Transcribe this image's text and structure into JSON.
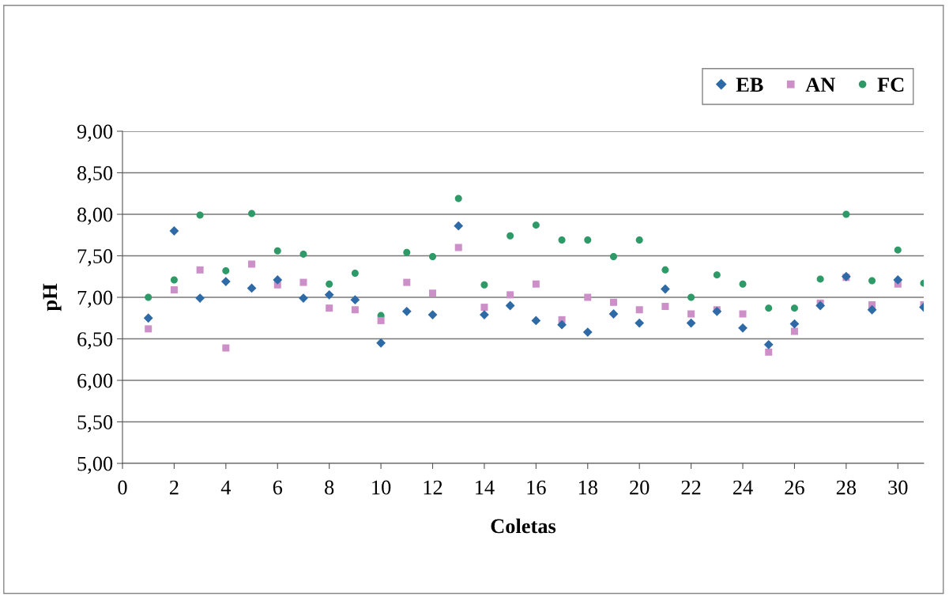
{
  "chart_data": {
    "type": "scatter",
    "xlabel": "Coletas",
    "ylabel": "pH",
    "x": [
      1,
      2,
      3,
      4,
      5,
      6,
      7,
      8,
      9,
      10,
      11,
      12,
      13,
      14,
      15,
      16,
      17,
      18,
      19,
      20,
      21,
      22,
      23,
      24,
      25,
      26,
      27,
      28,
      29,
      30,
      31
    ],
    "series": [
      {
        "name": "EB",
        "color": "#2e6aa6",
        "marker": "diamond",
        "values": [
          6.75,
          7.8,
          6.99,
          7.19,
          7.11,
          7.21,
          6.99,
          7.03,
          6.97,
          6.45,
          6.83,
          6.79,
          7.86,
          6.79,
          6.9,
          6.72,
          6.67,
          6.58,
          6.8,
          6.69,
          7.1,
          6.69,
          6.83,
          6.63,
          6.43,
          6.68,
          6.9,
          7.25,
          6.85,
          7.21,
          6.88
        ]
      },
      {
        "name": "AN",
        "color": "#cc8fc8",
        "marker": "square",
        "values": [
          6.62,
          7.09,
          7.33,
          6.39,
          7.4,
          7.15,
          7.18,
          6.87,
          6.85,
          6.72,
          7.18,
          7.05,
          7.6,
          6.88,
          7.03,
          7.16,
          6.73,
          7.0,
          6.94,
          6.85,
          6.89,
          6.8,
          6.85,
          6.8,
          6.34,
          6.59,
          6.93,
          7.24,
          6.91,
          7.16,
          6.91
        ]
      },
      {
        "name": "FC",
        "color": "#2e9a68",
        "marker": "circle",
        "values": [
          7.0,
          7.21,
          7.99,
          7.32,
          8.01,
          7.56,
          7.52,
          7.16,
          7.29,
          6.78,
          7.54,
          7.49,
          8.19,
          7.15,
          7.74,
          7.87,
          7.69,
          7.69,
          7.49,
          7.69,
          7.33,
          7.0,
          7.27,
          7.16,
          6.87,
          6.87,
          7.22,
          8.0,
          7.2,
          7.57,
          7.17
        ]
      }
    ],
    "xlim": [
      0,
      31
    ],
    "xticks": [
      0,
      2,
      4,
      6,
      8,
      10,
      12,
      14,
      16,
      18,
      20,
      22,
      24,
      26,
      28,
      30
    ],
    "ylim": [
      5,
      9
    ],
    "yticks": [
      {
        "value": 5,
        "label": "5,00"
      },
      {
        "value": 5.5,
        "label": "5,50"
      },
      {
        "value": 6,
        "label": "6,00"
      },
      {
        "value": 6.5,
        "label": "6,50"
      },
      {
        "value": 7,
        "label": "7,00"
      },
      {
        "value": 7.5,
        "label": "7,50"
      },
      {
        "value": 8,
        "label": "8,00"
      },
      {
        "value": 8.5,
        "label": "8,50"
      },
      {
        "value": 9,
        "label": "9,00"
      }
    ],
    "grid": "y",
    "legend": "top right"
  }
}
